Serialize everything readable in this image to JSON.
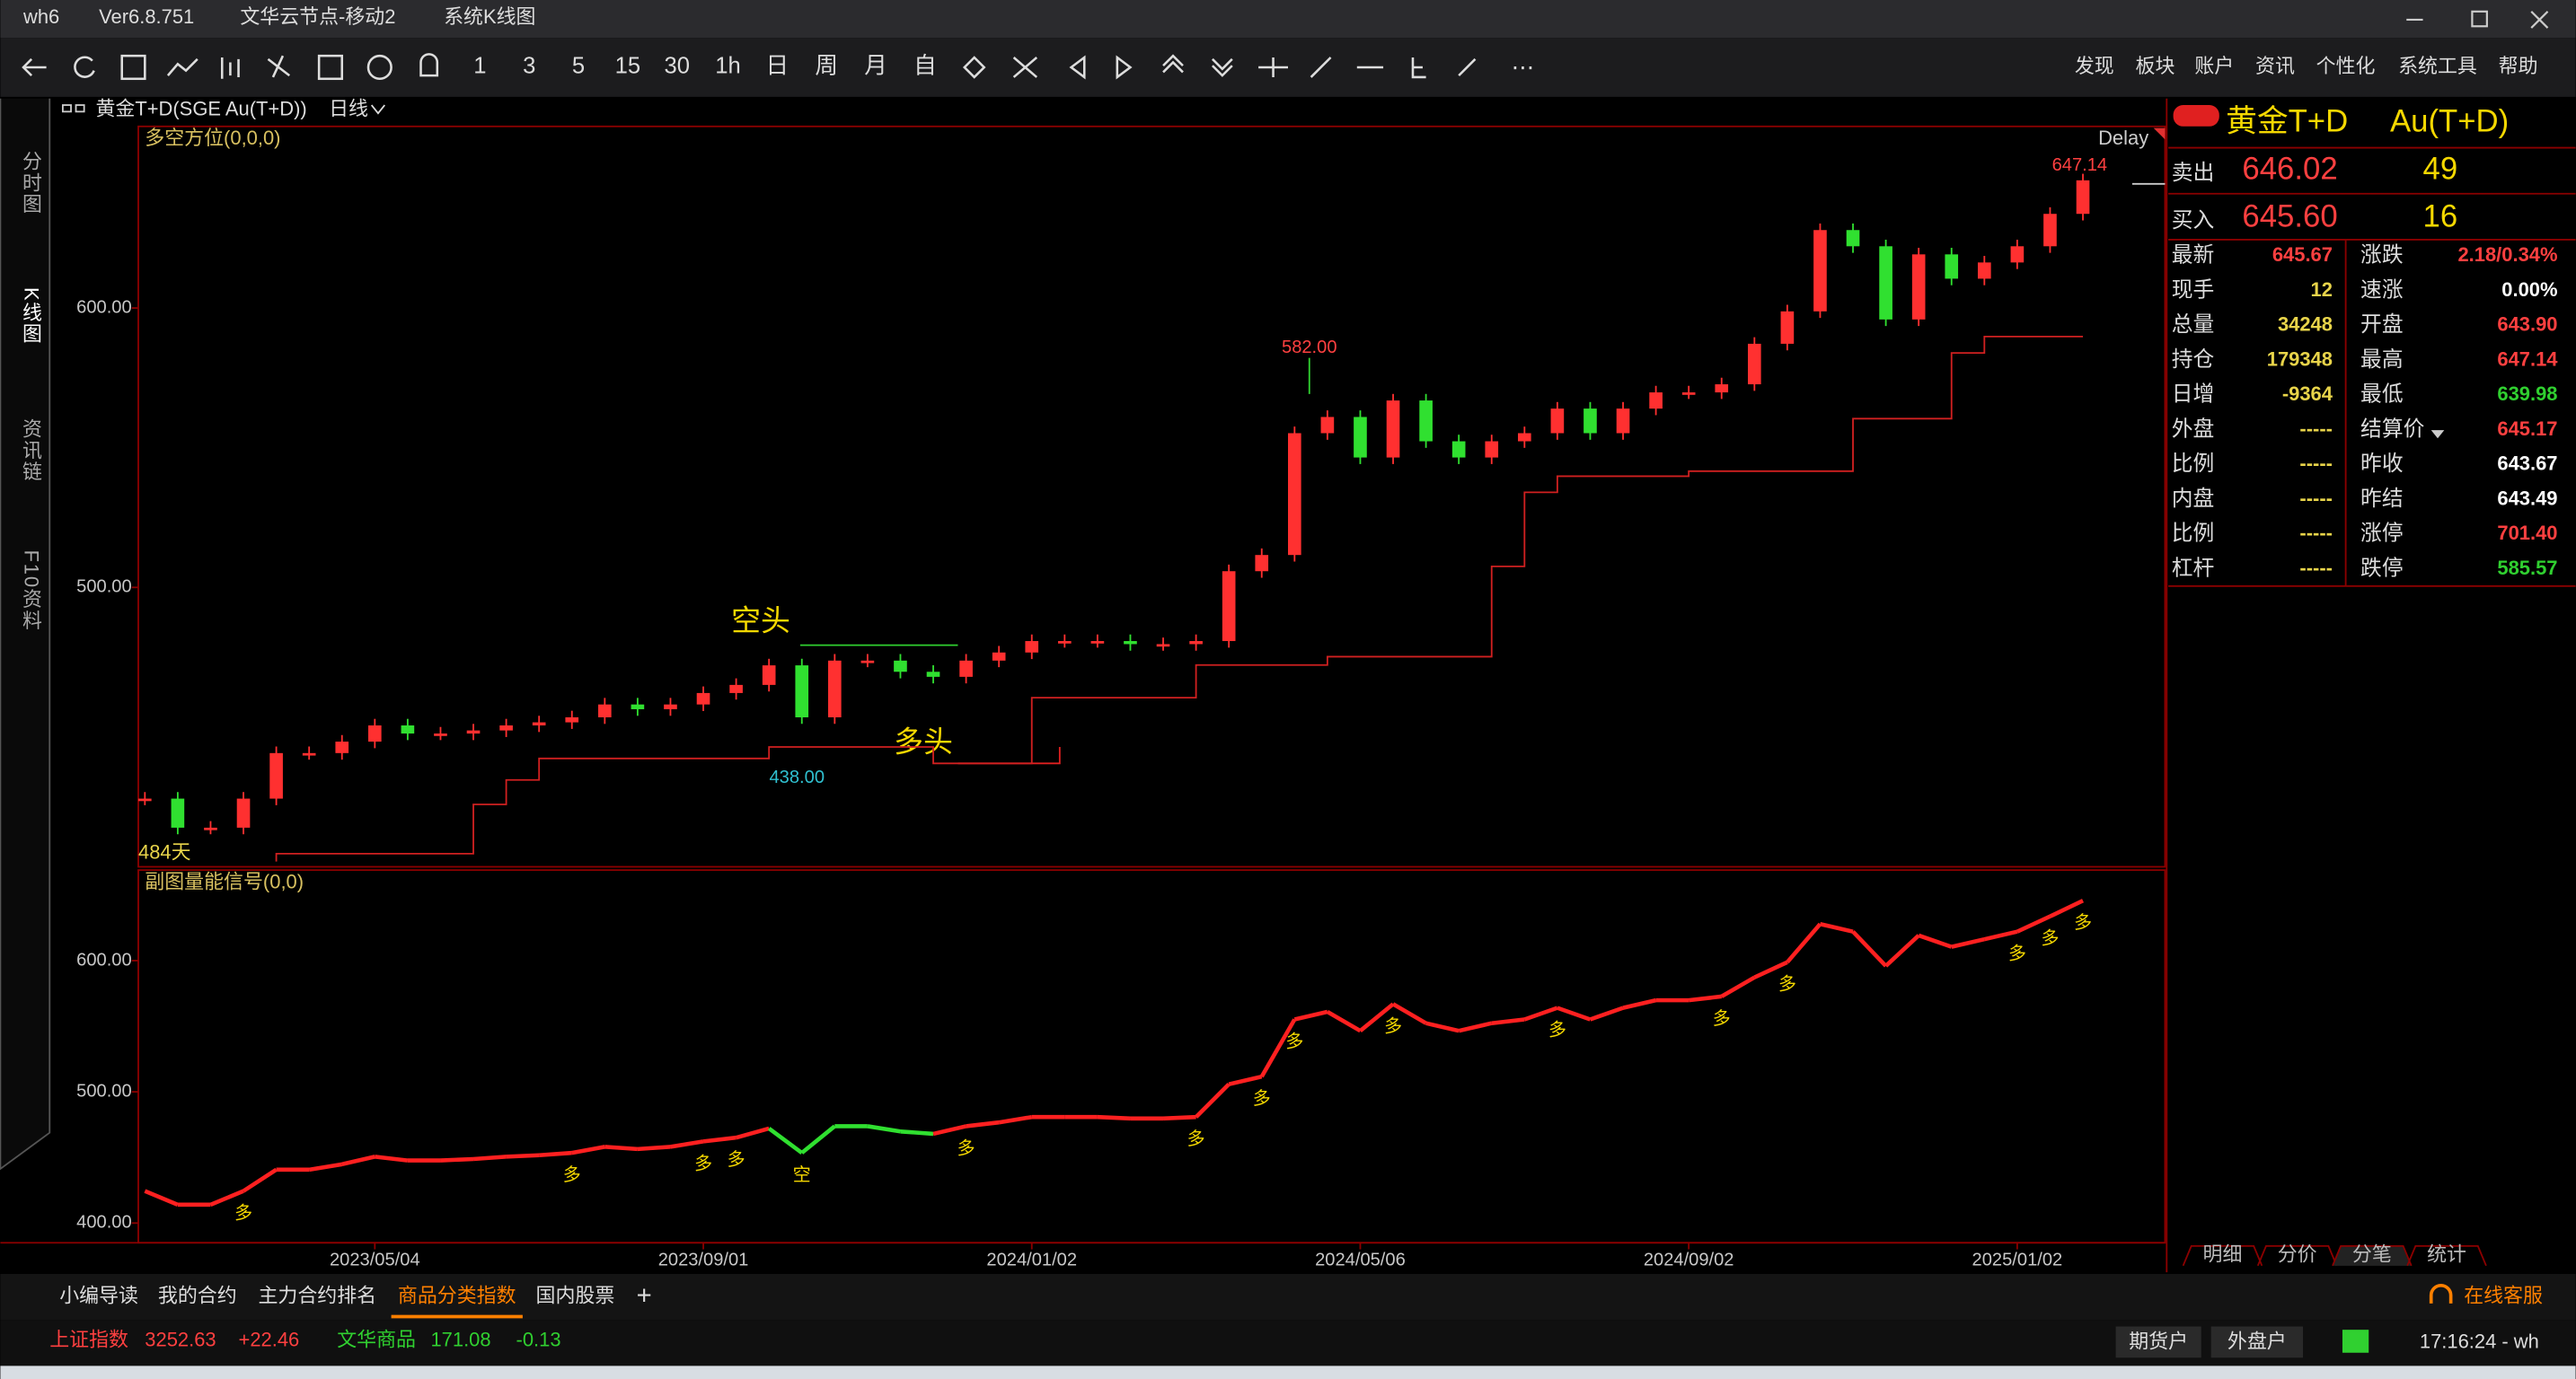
{
  "window": {
    "app": "wh6",
    "version": "Ver6.8.751",
    "node": "文华云节点-移动2",
    "view": "系统K线图"
  },
  "toolbar": {
    "periods": [
      "1",
      "3",
      "5",
      "15",
      "30",
      "1h",
      "日",
      "周",
      "月",
      "自"
    ],
    "menu": [
      "发现",
      "板块",
      "账户",
      "资讯",
      "个性化",
      "系统工具",
      "帮助"
    ]
  },
  "side_tabs": [
    "分时图",
    "K线图",
    "资讯链",
    "F10资料"
  ],
  "header": {
    "contract": "黄金T+D(SGE Au(T+D))",
    "period": "日线",
    "delay": "Delay"
  },
  "chart_data": [
    {
      "type": "kline",
      "title": "多空方位(0,0,0)",
      "categories": [
        null,
        null,
        null,
        null,
        null,
        null,
        null,
        "2023/05/04",
        null,
        null,
        null,
        null,
        null,
        null,
        null,
        null,
        null,
        "2023/09/01",
        null,
        null,
        null,
        null,
        null,
        null,
        null,
        null,
        null,
        "2024/01/02",
        null,
        null,
        null,
        null,
        null,
        null,
        null,
        null,
        null,
        "2024/05/06",
        null,
        null,
        null,
        null,
        null,
        null,
        null,
        null,
        null,
        "2024/09/02",
        null,
        null,
        null,
        null,
        null,
        null,
        null,
        null,
        null,
        "2025/01/02",
        null,
        null
      ],
      "values": [
        424.4,
        414.0,
        414.0,
        424.4,
        440.7,
        440.7,
        444.8,
        450.6,
        447.7,
        447.7,
        448.8,
        450.6,
        451.7,
        453.5,
        458.1,
        456.4,
        458.1,
        462.2,
        465.1,
        472.1,
        453.5,
        473.8,
        473.8,
        469.8,
        468.0,
        473.8,
        476.7,
        480.8,
        480.8,
        480.8,
        479.7,
        479.7,
        480.8,
        505.8,
        511.6,
        555.2,
        561.0,
        546.5,
        566.9,
        552.3,
        546.5,
        552.3,
        555.2,
        564.0,
        555.2,
        564.0,
        569.8,
        569.8,
        572.7,
        587.2,
        598.8,
        627.9,
        622.1,
        595.9,
        619.2,
        610.5,
        616.3,
        622.1,
        633.7,
        645.7
      ],
      "support": [
        null,
        null,
        null,
        null,
        401.9,
        404.7,
        404.7,
        404.7,
        404.7,
        404.7,
        404.7,
        422.3,
        431.1,
        438.8,
        438.8,
        438.8,
        438.8,
        438.8,
        438.8,
        438.8,
        442.9,
        442.9,
        442.9,
        442.9,
        442.9,
        437.0,
        437.0,
        437.0,
        460.5,
        460.5,
        460.5,
        460.5,
        460.5,
        472.2,
        472.2,
        472.2,
        472.2,
        475.2,
        475.2,
        475.2,
        475.2,
        475.2,
        507.5,
        534.0,
        539.8,
        539.8,
        539.8,
        539.8,
        541.6,
        541.6,
        541.6,
        541.6,
        541.6,
        560.4,
        560.4,
        560.4,
        583.9,
        589.8,
        589.8,
        589.8
      ],
      "ylim": [
        400,
        665
      ],
      "yticks": [
        {
          "value": 500,
          "label": "500.00"
        },
        {
          "value": 600,
          "label": "600.00"
        }
      ],
      "annotations": [
        "582.00",
        "438.00",
        "647.14",
        "空头",
        "多头",
        "484天"
      ]
    },
    {
      "type": "signal-line",
      "title": "副图量能信号(0,0)",
      "ylim": [
        385,
        669
      ],
      "yticks": [
        {
          "value": 400,
          "label": "400.00"
        },
        {
          "value": 500,
          "label": "500.00"
        },
        {
          "value": 600,
          "label": "600.00"
        }
      ],
      "signals": [
        null,
        null,
        null,
        "多",
        null,
        null,
        null,
        null,
        null,
        null,
        null,
        null,
        null,
        "多",
        null,
        null,
        null,
        "多",
        "多",
        null,
        "空",
        null,
        null,
        null,
        null,
        "多",
        null,
        null,
        null,
        null,
        null,
        null,
        "多",
        null,
        "多",
        "多",
        null,
        null,
        "多",
        null,
        null,
        null,
        null,
        "多",
        null,
        null,
        null,
        null,
        "多",
        null,
        "多",
        null,
        null,
        null,
        null,
        null,
        null,
        "多",
        "多",
        "多"
      ]
    }
  ],
  "quote": {
    "name": "黄金T+D",
    "code": "Au(T+D)",
    "ask": {
      "label": "卖出",
      "price": "646.02",
      "qty": "49"
    },
    "bid": {
      "label": "买入",
      "price": "645.60",
      "qty": "16"
    },
    "rows": [
      [
        {
          "label": "最新",
          "value": "645.67",
          "color": "#ff4040"
        },
        {
          "label": "涨跌",
          "value": "2.18/0.34%",
          "color": "#ff4040"
        }
      ],
      [
        {
          "label": "现手",
          "value": "12",
          "color": "#e8d44a"
        },
        {
          "label": "速涨",
          "value": "0.00%",
          "color": "#ffffff"
        }
      ],
      [
        {
          "label": "总量",
          "value": "34248",
          "color": "#e8d44a"
        },
        {
          "label": "开盘",
          "value": "643.90",
          "color": "#ff4040"
        }
      ],
      [
        {
          "label": "持仓",
          "value": "179348",
          "color": "#e8d44a"
        },
        {
          "label": "最高",
          "value": "647.14",
          "color": "#ff4040"
        }
      ],
      [
        {
          "label": "日增",
          "value": "-9364",
          "color": "#e8d44a"
        },
        {
          "label": "最低",
          "value": "639.98",
          "color": "#30d030"
        }
      ],
      [
        {
          "label": "外盘",
          "value": "-----",
          "color": "#e8d44a"
        },
        {
          "label": "结算价",
          "value": "645.17",
          "color": "#ff4040"
        }
      ],
      [
        {
          "label": "比例",
          "value": "-----",
          "color": "#e8d44a"
        },
        {
          "label": "昨收",
          "value": "643.67",
          "color": "#ffffff"
        }
      ],
      [
        {
          "label": "内盘",
          "value": "-----",
          "color": "#e8d44a"
        },
        {
          "label": "昨结",
          "value": "643.49",
          "color": "#ffffff"
        }
      ],
      [
        {
          "label": "比例",
          "value": "-----",
          "color": "#e8d44a"
        },
        {
          "label": "涨停",
          "value": "701.40",
          "color": "#ff4040"
        }
      ],
      [
        {
          "label": "杠杆",
          "value": "-----",
          "color": "#e8d44a"
        },
        {
          "label": "跌停",
          "value": "585.57",
          "color": "#30d030"
        }
      ]
    ],
    "tabs": [
      "明细",
      "分价",
      "分笔",
      "统计"
    ]
  },
  "bottom_tabs": [
    "小编导读",
    "我的合约",
    "主力合约排名",
    "商品分类指数",
    "国内股票",
    "+"
  ],
  "status": {
    "index1": "上证指数",
    "index1_value": "3252.63",
    "index1_change": "+22.46",
    "index2": "文华商品",
    "index2_value": "171.08",
    "index2_change": "-0.13",
    "account1": "期货户",
    "account2": "外盘户",
    "time": "17:16:24 - wh",
    "service": "在线客服"
  }
}
